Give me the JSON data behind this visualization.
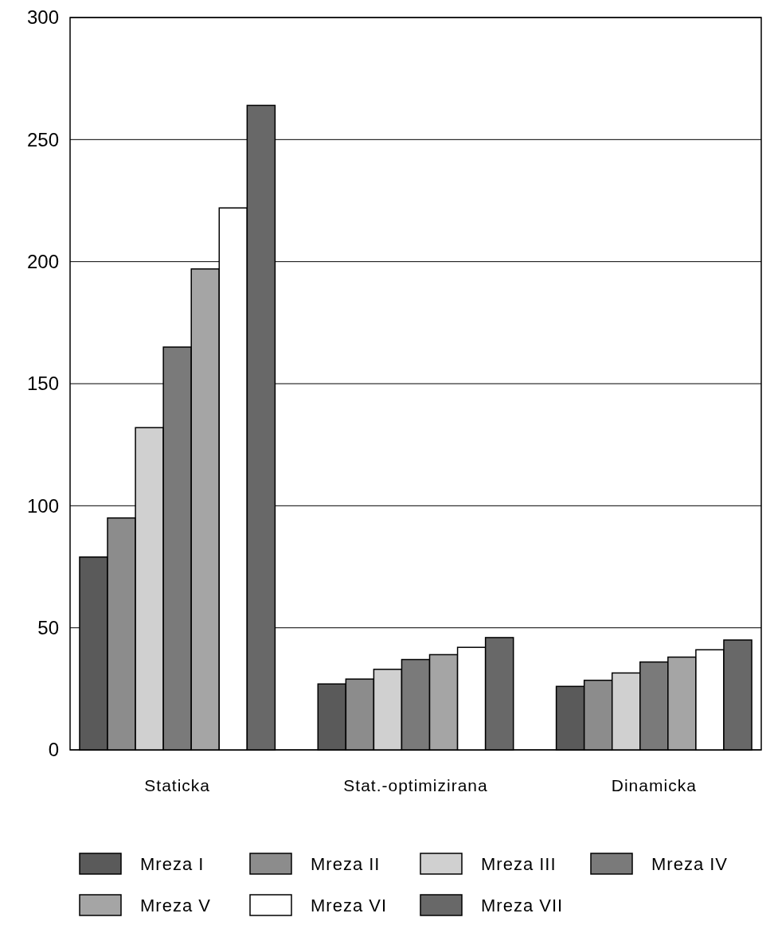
{
  "chart_data": {
    "type": "bar",
    "categories": [
      "Staticka",
      "Stat.-optimizirana",
      "Dinamicka"
    ],
    "series": [
      {
        "name": "Mreza I",
        "color": "#5a5a5a",
        "values": [
          79,
          27,
          26
        ]
      },
      {
        "name": "Mreza II",
        "color": "#8c8c8c",
        "values": [
          95,
          29,
          28.5
        ]
      },
      {
        "name": "Mreza III",
        "color": "#d0d0d0",
        "values": [
          132,
          33,
          31.5
        ]
      },
      {
        "name": "Mreza IV",
        "color": "#7a7a7a",
        "values": [
          165,
          37,
          36
        ]
      },
      {
        "name": "Mreza V",
        "color": "#a5a5a5",
        "values": [
          197,
          39,
          38
        ]
      },
      {
        "name": "Mreza VI",
        "color": "#ffffff",
        "values": [
          222,
          42,
          41
        ]
      },
      {
        "name": "Mreza VII",
        "color": "#686868",
        "values": [
          264,
          46,
          45
        ]
      }
    ],
    "ylim": [
      0,
      300
    ],
    "yticks": [
      0,
      50,
      100,
      150,
      200,
      250,
      300
    ],
    "grid": "y",
    "legend": "bottom"
  }
}
